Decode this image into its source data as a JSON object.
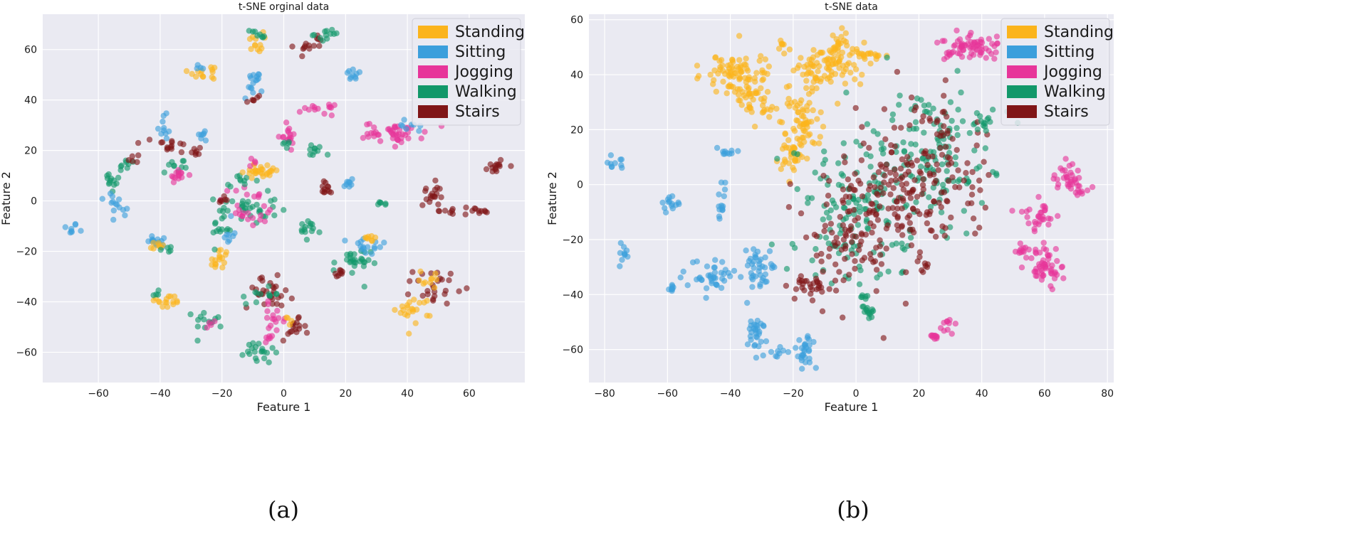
{
  "colors": {
    "Standing": "#fbb41c",
    "Sitting": "#3b9fdc",
    "Jogging": "#e7359a",
    "Walking": "#12986a",
    "Stairs": "#801517"
  },
  "chart_data": [
    {
      "type": "scatter",
      "title": "t-SNE orginal data",
      "xlabel": "Feature 1",
      "ylabel": "Feature 2",
      "xlim": [
        -78,
        78
      ],
      "ylim": [
        -72,
        74
      ],
      "xticks": [
        -60,
        -40,
        -20,
        0,
        20,
        40,
        60
      ],
      "yticks": [
        -60,
        -40,
        -20,
        0,
        20,
        40,
        60
      ],
      "legend": [
        "Standing",
        "Sitting",
        "Jogging",
        "Walking",
        "Stairs"
      ],
      "legend_position": "top-right",
      "caption": "(a)",
      "clusters": [
        {
          "cls": "Sitting",
          "x": -69,
          "y": -11,
          "sx": 1.2,
          "sy": 1.2,
          "n": 8
        },
        {
          "cls": "Walking",
          "x": -56,
          "y": 8,
          "sx": 2,
          "sy": 2.5,
          "n": 12
        },
        {
          "cls": "Sitting",
          "x": -55,
          "y": 0,
          "sx": 2,
          "sy": 2,
          "n": 8
        },
        {
          "cls": "Walking",
          "x": -51,
          "y": 14,
          "sx": 2,
          "sy": 1.5,
          "n": 8
        },
        {
          "cls": "Stairs",
          "x": -48,
          "y": 17,
          "sx": 1.5,
          "sy": 1,
          "n": 5
        },
        {
          "cls": "Sitting",
          "x": -53,
          "y": -6,
          "sx": 1.5,
          "sy": 2,
          "n": 6
        },
        {
          "cls": "Sitting",
          "x": -40,
          "y": -16,
          "sx": 2,
          "sy": 1.5,
          "n": 16
        },
        {
          "cls": "Standing",
          "x": -41,
          "y": -18,
          "sx": 1.5,
          "sy": 1,
          "n": 8
        },
        {
          "cls": "Walking",
          "x": -38,
          "y": -19,
          "sx": 1,
          "sy": 1,
          "n": 5
        },
        {
          "cls": "Sitting",
          "x": -39,
          "y": 30,
          "sx": 1.5,
          "sy": 3,
          "n": 10
        },
        {
          "cls": "Stairs",
          "x": -37,
          "y": 22,
          "sx": 2.5,
          "sy": 2,
          "n": 14
        },
        {
          "cls": "Walking",
          "x": -35,
          "y": 14,
          "sx": 3,
          "sy": 2,
          "n": 10
        },
        {
          "cls": "Jogging",
          "x": -34,
          "y": 10,
          "sx": 1.5,
          "sy": 1.5,
          "n": 14
        },
        {
          "cls": "Stairs",
          "x": -30,
          "y": 19,
          "sx": 2,
          "sy": 1.5,
          "n": 8
        },
        {
          "cls": "Sitting",
          "x": -26,
          "y": 26,
          "sx": 1.5,
          "sy": 1.5,
          "n": 7
        },
        {
          "cls": "Standing",
          "x": -25,
          "y": 51,
          "sx": 3,
          "sy": 1.5,
          "n": 14
        },
        {
          "cls": "Sitting",
          "x": -27,
          "y": 53,
          "sx": 1,
          "sy": 1,
          "n": 4
        },
        {
          "cls": "Standing",
          "x": -38,
          "y": -40,
          "sx": 2.5,
          "sy": 1.5,
          "n": 16
        },
        {
          "cls": "Walking",
          "x": -41,
          "y": -37,
          "sx": 1,
          "sy": 1,
          "n": 4
        },
        {
          "cls": "Walking",
          "x": -24,
          "y": -47,
          "sx": 2.5,
          "sy": 2,
          "n": 14
        },
        {
          "cls": "Jogging",
          "x": -24,
          "y": -49,
          "sx": 1,
          "sy": 1,
          "n": 4
        },
        {
          "cls": "Standing",
          "x": -21,
          "y": -24,
          "sx": 1.5,
          "sy": 3,
          "n": 16
        },
        {
          "cls": "Walking",
          "x": -20,
          "y": -10,
          "sx": 1.5,
          "sy": 4,
          "n": 16
        },
        {
          "cls": "Sitting",
          "x": -18,
          "y": -13,
          "sx": 1.5,
          "sy": 3,
          "n": 8
        },
        {
          "cls": "Jogging",
          "x": -13,
          "y": 2,
          "sx": 3,
          "sy": 2,
          "n": 10
        },
        {
          "cls": "Walking",
          "x": -12,
          "y": -3,
          "sx": 5,
          "sy": 3,
          "n": 30
        },
        {
          "cls": "Jogging",
          "x": -8,
          "y": -5,
          "sx": 3,
          "sy": 3,
          "n": 16
        },
        {
          "cls": "Stairs",
          "x": -19,
          "y": 0,
          "sx": 1.5,
          "sy": 1,
          "n": 6
        },
        {
          "cls": "Walking",
          "x": -15,
          "y": 8,
          "sx": 3,
          "sy": 1,
          "n": 10
        },
        {
          "cls": "Standing",
          "x": -7,
          "y": 12,
          "sx": 3,
          "sy": 1.5,
          "n": 28
        },
        {
          "cls": "Jogging",
          "x": -9,
          "y": 15,
          "sx": 1,
          "sy": 1,
          "n": 4
        },
        {
          "cls": "Standing",
          "x": -9,
          "y": 63,
          "sx": 1.2,
          "sy": 2,
          "n": 12
        },
        {
          "cls": "Walking",
          "x": -9,
          "y": 66,
          "sx": 1.5,
          "sy": 1,
          "n": 8
        },
        {
          "cls": "Sitting",
          "x": -10,
          "y": 46,
          "sx": 1.5,
          "sy": 3,
          "n": 16
        },
        {
          "cls": "Stairs",
          "x": -9,
          "y": 40,
          "sx": 1.5,
          "sy": 1,
          "n": 6
        },
        {
          "cls": "Jogging",
          "x": 1,
          "y": 26,
          "sx": 1.5,
          "sy": 2,
          "n": 16
        },
        {
          "cls": "Walking",
          "x": 1,
          "y": 22,
          "sx": 1,
          "sy": 1,
          "n": 5
        },
        {
          "cls": "Walking",
          "x": 10,
          "y": 20,
          "sx": 1.5,
          "sy": 1.5,
          "n": 10
        },
        {
          "cls": "Stairs",
          "x": 8,
          "y": 62,
          "sx": 2.5,
          "sy": 2,
          "n": 14
        },
        {
          "cls": "Walking",
          "x": 15,
          "y": 66,
          "sx": 2.5,
          "sy": 1,
          "n": 12
        },
        {
          "cls": "Jogging",
          "x": 11,
          "y": 36,
          "sx": 2.5,
          "sy": 1,
          "n": 14
        },
        {
          "cls": "Sitting",
          "x": 23,
          "y": 50,
          "sx": 1.5,
          "sy": 1,
          "n": 10
        },
        {
          "cls": "Stairs",
          "x": 14,
          "y": 5,
          "sx": 1.5,
          "sy": 1.5,
          "n": 12
        },
        {
          "cls": "Sitting",
          "x": 21,
          "y": 7,
          "sx": 1.5,
          "sy": 1.5,
          "n": 8
        },
        {
          "cls": "Walking",
          "x": 8,
          "y": -12,
          "sx": 2,
          "sy": 2,
          "n": 14
        },
        {
          "cls": "Walking",
          "x": 32,
          "y": -1,
          "sx": 1,
          "sy": 0.6,
          "n": 6
        },
        {
          "cls": "Jogging",
          "x": 36,
          "y": 27,
          "sx": 5,
          "sy": 2,
          "n": 45
        },
        {
          "cls": "Sitting",
          "x": 40,
          "y": 29,
          "sx": 2,
          "sy": 1.5,
          "n": 8
        },
        {
          "cls": "Stairs",
          "x": 48,
          "y": 3,
          "sx": 1.5,
          "sy": 2.5,
          "n": 18
        },
        {
          "cls": "Stairs",
          "x": 58,
          "y": -4,
          "sx": 5,
          "sy": 0.7,
          "n": 18
        },
        {
          "cls": "Stairs",
          "x": 69,
          "y": 14,
          "sx": 1.5,
          "sy": 1.5,
          "n": 14
        },
        {
          "cls": "Standing",
          "x": 42,
          "y": -43,
          "sx": 3,
          "sy": 2.5,
          "n": 22
        },
        {
          "cls": "Stairs",
          "x": 49,
          "y": -34,
          "sx": 3.5,
          "sy": 3.5,
          "n": 26
        },
        {
          "cls": "Standing",
          "x": 48,
          "y": -31,
          "sx": 2,
          "sy": 2,
          "n": 10
        },
        {
          "cls": "Walking",
          "x": 22,
          "y": -25,
          "sx": 3,
          "sy": 3,
          "n": 28
        },
        {
          "cls": "Sitting",
          "x": 27,
          "y": -18,
          "sx": 3,
          "sy": 2,
          "n": 16
        },
        {
          "cls": "Standing",
          "x": 28,
          "y": -15,
          "sx": 1.5,
          "sy": 1,
          "n": 8
        },
        {
          "cls": "Stairs",
          "x": 18,
          "y": -29,
          "sx": 1.5,
          "sy": 1,
          "n": 8
        },
        {
          "cls": "Stairs",
          "x": -5,
          "y": -36,
          "sx": 4,
          "sy": 3,
          "n": 30
        },
        {
          "cls": "Walking",
          "x": -6,
          "y": -37,
          "sx": 3,
          "sy": 2,
          "n": 12
        },
        {
          "cls": "Jogging",
          "x": -3,
          "y": -47,
          "sx": 2,
          "sy": 3,
          "n": 16
        },
        {
          "cls": "Stairs",
          "x": 3,
          "y": -51,
          "sx": 2,
          "sy": 2,
          "n": 16
        },
        {
          "cls": "Walking",
          "x": -8,
          "y": -60,
          "sx": 2.5,
          "sy": 2.5,
          "n": 20
        },
        {
          "cls": "Jogging",
          "x": -5,
          "y": -55,
          "sx": 1.2,
          "sy": 1.2,
          "n": 5
        },
        {
          "cls": "Standing",
          "x": 2,
          "y": -48,
          "sx": 1,
          "sy": 1,
          "n": 4
        }
      ]
    },
    {
      "type": "scatter",
      "title": "t-SNE data",
      "xlabel": "Feature 1",
      "ylabel": "Feature 2",
      "xlim": [
        -85,
        82
      ],
      "ylim": [
        -72,
        62
      ],
      "xticks": [
        -80,
        -60,
        -40,
        -20,
        0,
        20,
        40,
        60,
        80
      ],
      "yticks": [
        -60,
        -40,
        -20,
        0,
        20,
        40,
        60
      ],
      "legend": [
        "Standing",
        "Sitting",
        "Jogging",
        "Walking",
        "Stairs"
      ],
      "legend_position": "top-right",
      "caption": "(b)",
      "clusters": [
        {
          "cls": "Standing",
          "x": -38,
          "y": 40,
          "sx": 5,
          "sy": 4,
          "n": 90
        },
        {
          "cls": "Standing",
          "x": -32,
          "y": 30,
          "sx": 3,
          "sy": 3,
          "n": 30
        },
        {
          "cls": "Standing",
          "x": -18,
          "y": 21,
          "sx": 3,
          "sy": 6,
          "n": 70
        },
        {
          "cls": "Standing",
          "x": -21,
          "y": 9,
          "sx": 2,
          "sy": 3,
          "n": 25
        },
        {
          "cls": "Standing",
          "x": -10,
          "y": 42,
          "sx": 5,
          "sy": 4,
          "n": 80
        },
        {
          "cls": "Standing",
          "x": -6,
          "y": 50,
          "sx": 2,
          "sy": 3,
          "n": 25
        },
        {
          "cls": "Standing",
          "x": 3,
          "y": 47,
          "sx": 3,
          "sy": 1.5,
          "n": 22
        },
        {
          "cls": "Standing",
          "x": -24,
          "y": 51,
          "sx": 1,
          "sy": 1.5,
          "n": 8
        },
        {
          "cls": "Sitting",
          "x": -76,
          "y": 8,
          "sx": 2,
          "sy": 2,
          "n": 10
        },
        {
          "cls": "Sitting",
          "x": -59,
          "y": -7,
          "sx": 1.5,
          "sy": 1.5,
          "n": 14
        },
        {
          "cls": "Sitting",
          "x": -43,
          "y": -5,
          "sx": 1,
          "sy": 4,
          "n": 14
        },
        {
          "cls": "Sitting",
          "x": -42,
          "y": 12,
          "sx": 2.5,
          "sy": 0.7,
          "n": 10
        },
        {
          "cls": "Sitting",
          "x": -74,
          "y": -25,
          "sx": 1,
          "sy": 2,
          "n": 10
        },
        {
          "cls": "Sitting",
          "x": -46,
          "y": -33,
          "sx": 4,
          "sy": 3,
          "n": 40
        },
        {
          "cls": "Sitting",
          "x": -31,
          "y": -29,
          "sx": 3,
          "sy": 5,
          "n": 40
        },
        {
          "cls": "Sitting",
          "x": -59,
          "y": -38,
          "sx": 1,
          "sy": 1,
          "n": 8
        },
        {
          "cls": "Sitting",
          "x": -32,
          "y": -55,
          "sx": 2,
          "sy": 4,
          "n": 30
        },
        {
          "cls": "Sitting",
          "x": -16,
          "y": -61,
          "sx": 1.5,
          "sy": 3,
          "n": 28
        },
        {
          "cls": "Sitting",
          "x": -25,
          "y": -61,
          "sx": 1.5,
          "sy": 0.8,
          "n": 8
        },
        {
          "cls": "Jogging",
          "x": 36,
          "y": 50,
          "sx": 5,
          "sy": 2.5,
          "n": 70
        },
        {
          "cls": "Jogging",
          "x": 67,
          "y": 2,
          "sx": 3,
          "sy": 3,
          "n": 30
        },
        {
          "cls": "Jogging",
          "x": 72,
          "y": -2,
          "sx": 2,
          "sy": 1,
          "n": 10
        },
        {
          "cls": "Jogging",
          "x": 58,
          "y": -12,
          "sx": 3,
          "sy": 3,
          "n": 30
        },
        {
          "cls": "Jogging",
          "x": 53,
          "y": -24,
          "sx": 2,
          "sy": 2,
          "n": 14
        },
        {
          "cls": "Jogging",
          "x": 60,
          "y": -30,
          "sx": 2.5,
          "sy": 4,
          "n": 50
        },
        {
          "cls": "Jogging",
          "x": 25,
          "y": -55,
          "sx": 1,
          "sy": 0.8,
          "n": 10
        },
        {
          "cls": "Jogging",
          "x": 29,
          "y": -51,
          "sx": 1,
          "sy": 1.5,
          "n": 10
        },
        {
          "cls": "Walking",
          "x": 0,
          "y": -10,
          "sx": 9,
          "sy": 14,
          "n": 140
        },
        {
          "cls": "Walking",
          "x": 25,
          "y": 10,
          "sx": 9,
          "sy": 13,
          "n": 140
        },
        {
          "cls": "Stairs",
          "x": 2,
          "y": -15,
          "sx": 9,
          "sy": 13,
          "n": 150
        },
        {
          "cls": "Stairs",
          "x": 24,
          "y": 5,
          "sx": 9,
          "sy": 13,
          "n": 150
        },
        {
          "cls": "Stairs",
          "x": -14,
          "y": -37,
          "sx": 4,
          "sy": 1.5,
          "n": 25
        },
        {
          "cls": "Walking",
          "x": 4,
          "y": -46,
          "sx": 1,
          "sy": 1.5,
          "n": 14
        },
        {
          "cls": "Walking",
          "x": 2,
          "y": -41,
          "sx": 1,
          "sy": 0.5,
          "n": 6
        },
        {
          "cls": "Stairs",
          "x": 22,
          "y": -31,
          "sx": 1,
          "sy": 1.2,
          "n": 6
        },
        {
          "cls": "Walking",
          "x": 40,
          "y": 22,
          "sx": 2,
          "sy": 1.5,
          "n": 10
        }
      ]
    }
  ]
}
